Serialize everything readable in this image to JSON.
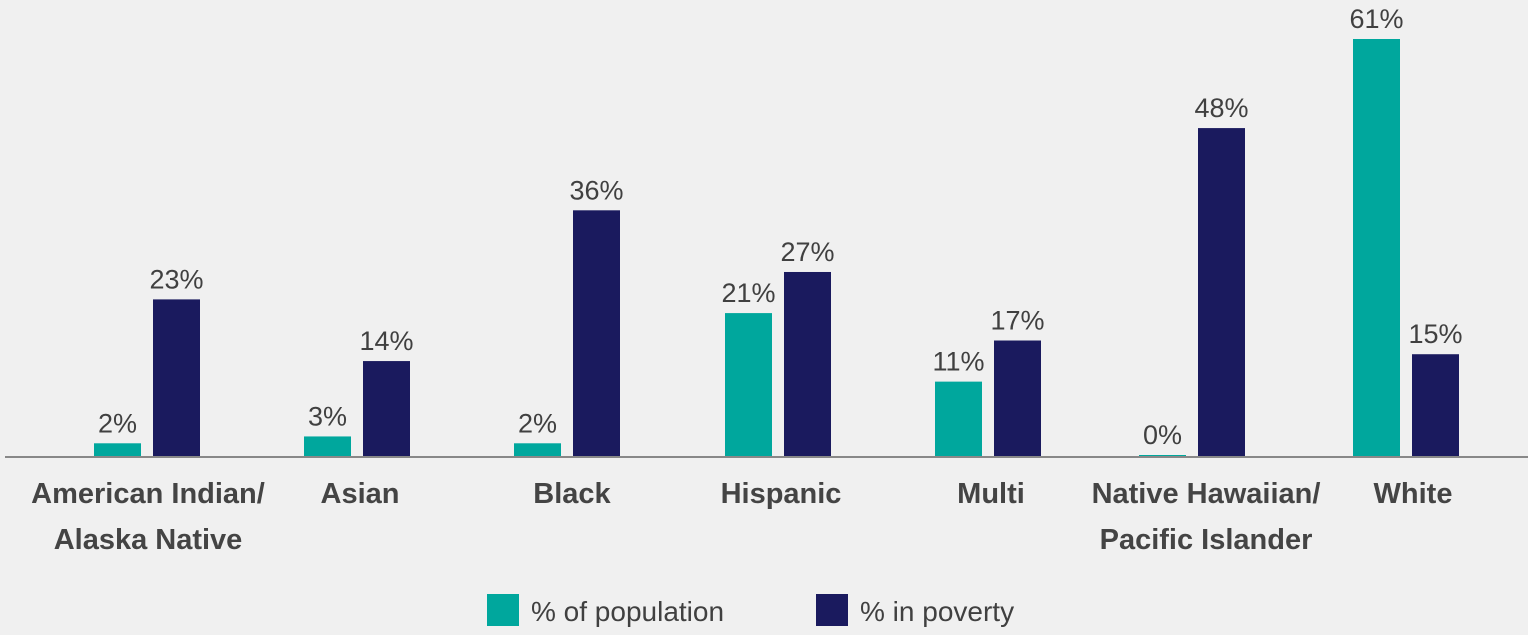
{
  "chart_data": {
    "type": "bar",
    "categories": [
      [
        "American Indian/",
        "Alaska Native"
      ],
      [
        "Asian"
      ],
      [
        "Black"
      ],
      [
        "Hispanic"
      ],
      [
        "Multi"
      ],
      [
        "Native Hawaiian/",
        "Pacific Islander"
      ],
      [
        "White"
      ]
    ],
    "series": [
      {
        "name": "% of population",
        "color": "#00a79d",
        "values": [
          2,
          3,
          2,
          21,
          11,
          0,
          61
        ],
        "labels": [
          "2%",
          "3%",
          "2%",
          "21%",
          "11%",
          "0%",
          "61%"
        ]
      },
      {
        "name": "% in poverty",
        "color": "#1a1a5e",
        "values": [
          23,
          14,
          36,
          27,
          17,
          48,
          15
        ],
        "labels": [
          "23%",
          "14%",
          "36%",
          "27%",
          "17%",
          "48%",
          "15%"
        ]
      }
    ],
    "ylim": [
      0,
      61
    ],
    "grid": false,
    "legend_position": "bottom-center"
  }
}
